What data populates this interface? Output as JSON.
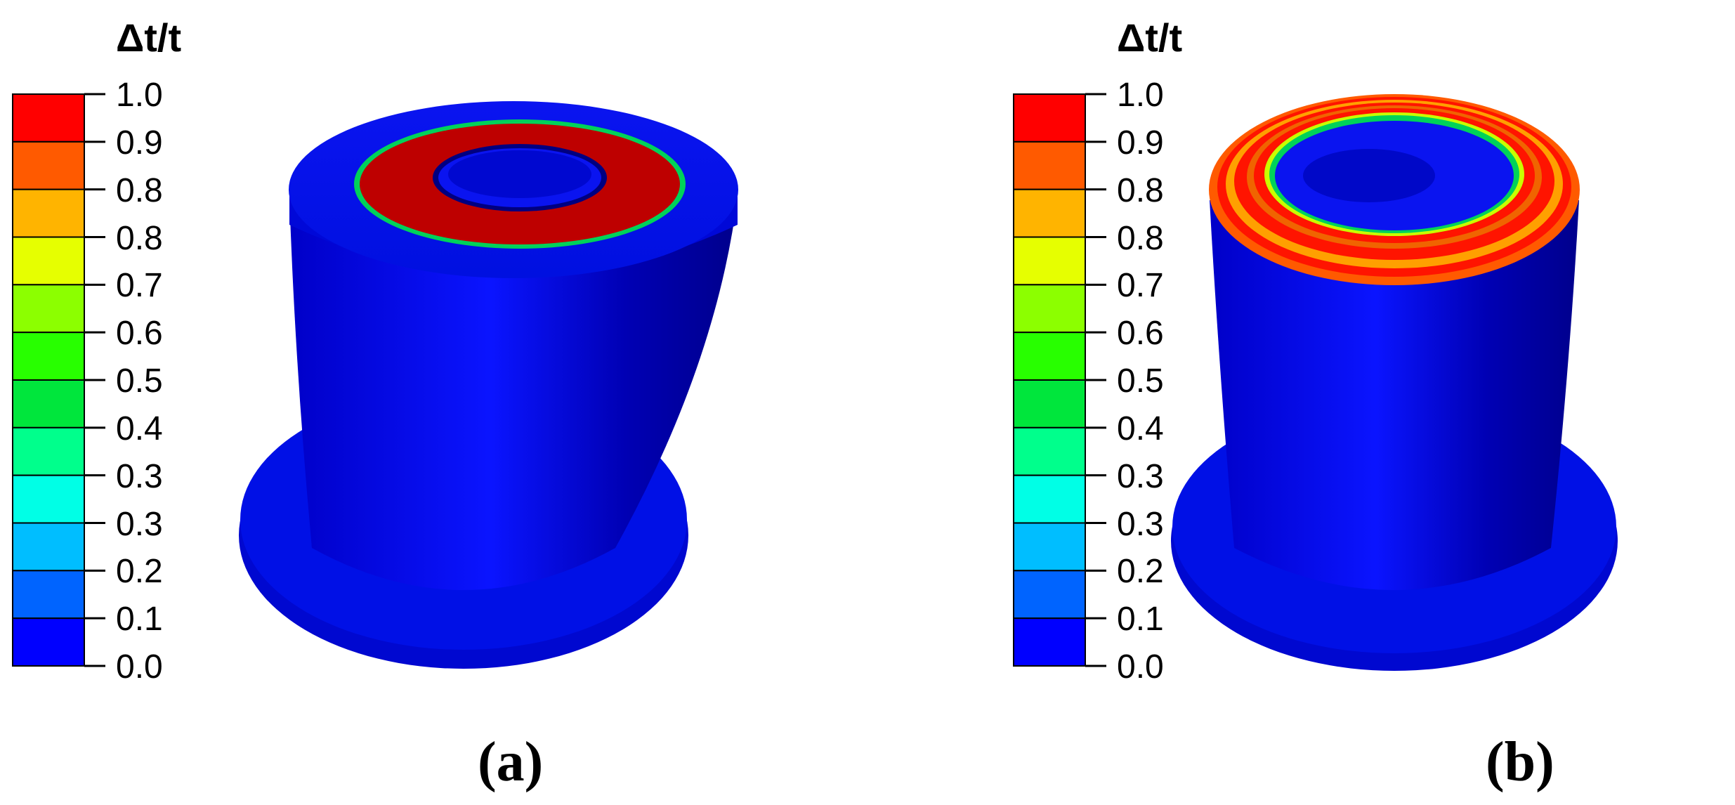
{
  "legend": {
    "title": "Δt/t",
    "tick_labels": [
      "1.0",
      "0.9",
      "0.8",
      "0.8",
      "0.7",
      "0.6",
      "0.5",
      "0.4",
      "0.3",
      "0.3",
      "0.2",
      "0.1",
      "0.0"
    ],
    "band_colors": [
      "#FF0000",
      "#FF5A00",
      "#FFB400",
      "#E6FF00",
      "#8CFF00",
      "#28FF00",
      "#00E63C",
      "#00FF8C",
      "#00FFE6",
      "#00BEFF",
      "#0064FF",
      "#0000FF"
    ]
  },
  "panels": [
    {
      "caption": "(a)",
      "description_colors": {
        "body": "#0A0AF0",
        "ring": "#BE0000",
        "ring_edge": "#00D25A"
      }
    },
    {
      "caption": "(b)",
      "description_colors": {
        "body": "#0A0AF0",
        "ring": "#FF1400",
        "ring_edge": "#00D25A"
      }
    }
  ]
}
